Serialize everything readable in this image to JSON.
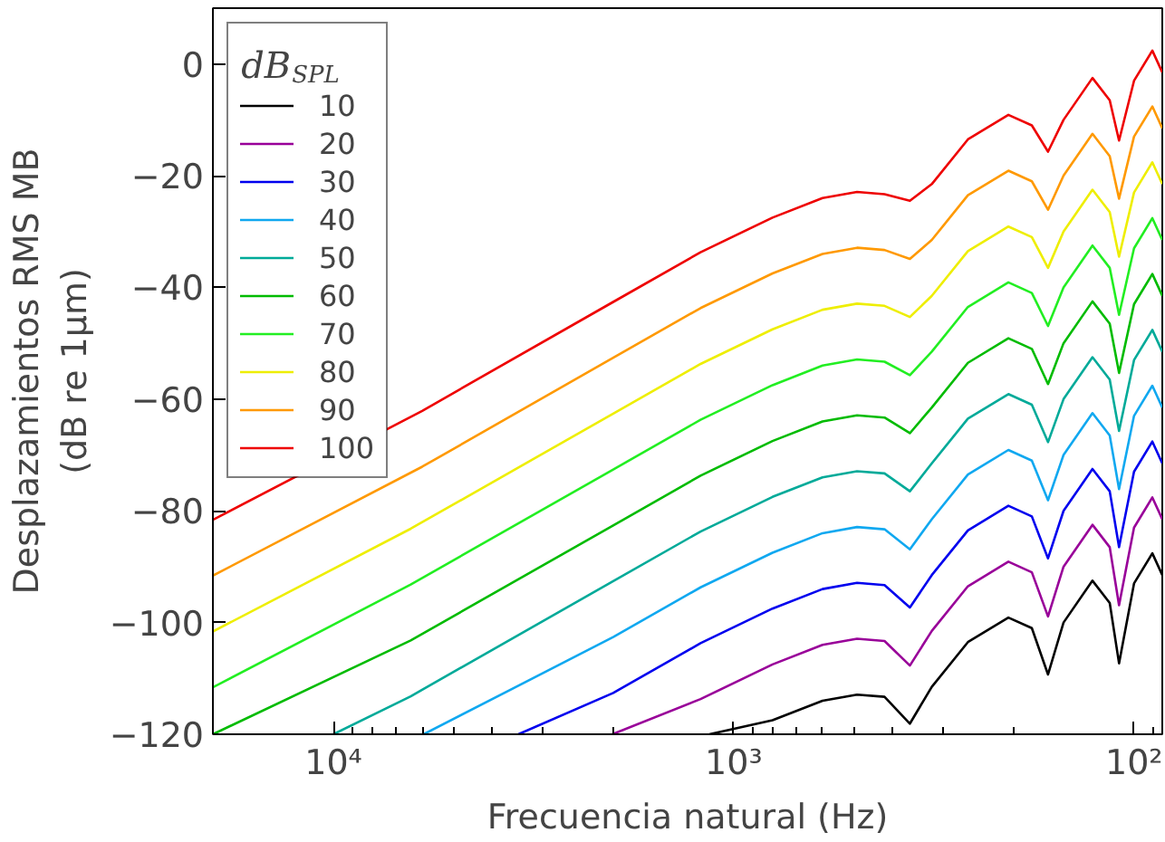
{
  "chart_data": {
    "type": "line",
    "xlabel": "Frecuencia natural (Hz)",
    "ylabel": "Desplazamientos RMS MB\n(dB re 1μm)",
    "legend_title": "dB$_{SPL}$",
    "log": "x",
    "grid": false,
    "legend": "top left",
    "marker": "none",
    "line_style": "solid",
    "xlim": [
      20000,
      85
    ],
    "ylim": [
      -120,
      10
    ],
    "xticks": [
      {
        "value": 10000,
        "label": "10⁴"
      },
      {
        "value": 1000,
        "label": "10³"
      },
      {
        "value": 100,
        "label": "10²"
      }
    ],
    "yticks": [
      {
        "value": 0,
        "label": "0"
      },
      {
        "value": -20,
        "label": "−20"
      },
      {
        "value": -40,
        "label": "−40"
      },
      {
        "value": -60,
        "label": "−60"
      },
      {
        "value": -80,
        "label": "−80"
      },
      {
        "value": -100,
        "label": "−100"
      },
      {
        "value": -120,
        "label": "−120"
      }
    ],
    "series": [
      {
        "name": "10",
        "color": "#000000",
        "x": [
          1150,
          800,
          600,
          492,
          420,
          363,
          320,
          260,
          206,
          180,
          164,
          150,
          127,
          115,
          109,
          100,
          90,
          85
        ],
        "values": [
          -120,
          -117.5,
          -114.0,
          -112.9,
          -113.3,
          -118.1,
          -111.5,
          -103.5,
          -99.1,
          -101.0,
          -109.3,
          -100.0,
          -92.5,
          -96.5,
          -107.3,
          -93.0,
          -87.6,
          -91.5
        ]
      },
      {
        "name": "20",
        "color": "#990099",
        "x": [
          2010,
          1210,
          800,
          600,
          492,
          420,
          363,
          320,
          260,
          206,
          180,
          164,
          150,
          127,
          115,
          109,
          100,
          90,
          85
        ],
        "values": [
          -120,
          -113.7,
          -107.5,
          -104.0,
          -102.9,
          -103.3,
          -107.7,
          -101.5,
          -93.5,
          -89.1,
          -91.0,
          -98.9,
          -90.0,
          -82.5,
          -86.5,
          -96.9,
          -83.0,
          -77.6,
          -81.5
        ]
      },
      {
        "name": "30",
        "color": "#0000ee",
        "x": [
          3450,
          2000,
          1210,
          800,
          600,
          492,
          420,
          363,
          320,
          260,
          206,
          180,
          164,
          150,
          127,
          115,
          109,
          100,
          90,
          85
        ],
        "values": [
          -120,
          -112.6,
          -103.7,
          -97.5,
          -94.0,
          -92.9,
          -93.3,
          -97.3,
          -91.5,
          -83.5,
          -79.1,
          -81.0,
          -88.5,
          -80.0,
          -72.5,
          -76.5,
          -86.5,
          -73.0,
          -67.6,
          -71.5
        ]
      },
      {
        "name": "40",
        "color": "#10a8f0",
        "x": [
          5950,
          2000,
          1210,
          800,
          600,
          492,
          420,
          363,
          320,
          260,
          206,
          180,
          164,
          150,
          127,
          115,
          109,
          100,
          90,
          85
        ],
        "values": [
          -120,
          -102.6,
          -93.7,
          -87.5,
          -84.0,
          -82.9,
          -83.3,
          -86.9,
          -81.5,
          -73.5,
          -69.1,
          -71.0,
          -78.1,
          -70.0,
          -62.5,
          -66.5,
          -76.1,
          -63.0,
          -57.6,
          -61.5
        ]
      },
      {
        "name": "50",
        "color": "#00aa99",
        "x": [
          10000,
          6410,
          2000,
          1210,
          800,
          600,
          492,
          420,
          363,
          320,
          260,
          206,
          180,
          164,
          150,
          127,
          115,
          109,
          100,
          90,
          85
        ],
        "values": [
          -120,
          -113.2,
          -92.6,
          -83.7,
          -77.5,
          -74.0,
          -72.9,
          -73.3,
          -76.5,
          -71.5,
          -63.5,
          -59.1,
          -61.0,
          -67.7,
          -60.0,
          -52.5,
          -56.5,
          -65.7,
          -53.0,
          -47.6,
          -51.5
        ]
      },
      {
        "name": "60",
        "color": "#00bb00",
        "x": [
          20000,
          6410,
          2000,
          1210,
          800,
          600,
          492,
          420,
          363,
          320,
          260,
          206,
          180,
          164,
          150,
          127,
          115,
          109,
          100,
          90,
          85
        ],
        "values": [
          -120,
          -103.2,
          -82.6,
          -73.7,
          -67.5,
          -64.0,
          -62.9,
          -63.3,
          -66.1,
          -61.5,
          -53.5,
          -49.1,
          -51.0,
          -57.3,
          -50.0,
          -42.5,
          -46.5,
          -55.3,
          -43.0,
          -37.6,
          -41.5
        ]
      },
      {
        "name": "70",
        "color": "#22ee22",
        "x": [
          20000,
          6410,
          2000,
          1210,
          800,
          600,
          492,
          420,
          363,
          320,
          260,
          206,
          180,
          164,
          150,
          127,
          115,
          109,
          100,
          90,
          85
        ],
        "values": [
          -111.6,
          -93.2,
          -72.6,
          -63.7,
          -57.5,
          -54.0,
          -52.9,
          -53.3,
          -55.7,
          -51.5,
          -43.5,
          -39.1,
          -41.0,
          -46.9,
          -40.0,
          -32.5,
          -36.5,
          -44.9,
          -33.0,
          -27.6,
          -31.5
        ]
      },
      {
        "name": "80",
        "color": "#eeee00",
        "x": [
          20000,
          6410,
          2000,
          1210,
          800,
          600,
          492,
          420,
          363,
          320,
          260,
          206,
          180,
          164,
          150,
          127,
          115,
          109,
          100,
          90,
          85
        ],
        "values": [
          -101.6,
          -83.2,
          -62.6,
          -53.7,
          -47.5,
          -44.0,
          -42.9,
          -43.3,
          -45.3,
          -41.5,
          -33.5,
          -29.1,
          -31.0,
          -36.5,
          -30.0,
          -22.5,
          -26.5,
          -34.5,
          -23.0,
          -17.6,
          -21.5
        ]
      },
      {
        "name": "90",
        "color": "#ff9900",
        "x": [
          20000,
          6000,
          2000,
          1210,
          800,
          600,
          492,
          420,
          363,
          320,
          260,
          206,
          180,
          164,
          150,
          127,
          115,
          109,
          100,
          90,
          85
        ],
        "values": [
          -91.6,
          -72.1,
          -52.6,
          -43.7,
          -37.5,
          -34.0,
          -32.9,
          -33.3,
          -34.9,
          -31.5,
          -23.5,
          -19.1,
          -21.0,
          -26.1,
          -20.0,
          -12.5,
          -16.5,
          -24.1,
          -13.0,
          -7.6,
          -11.5
        ]
      },
      {
        "name": "100",
        "color": "#ee0000",
        "x": [
          20000,
          6000,
          2000,
          1210,
          800,
          600,
          492,
          420,
          363,
          320,
          260,
          206,
          180,
          164,
          150,
          127,
          115,
          109,
          100,
          90,
          85
        ],
        "values": [
          -81.6,
          -62.1,
          -42.6,
          -33.7,
          -27.5,
          -24.0,
          -22.9,
          -23.3,
          -24.5,
          -21.5,
          -13.5,
          -9.1,
          -11.0,
          -15.7,
          -10.0,
          -2.5,
          -6.5,
          -13.7,
          -3.0,
          2.4,
          -1.5
        ]
      }
    ]
  }
}
